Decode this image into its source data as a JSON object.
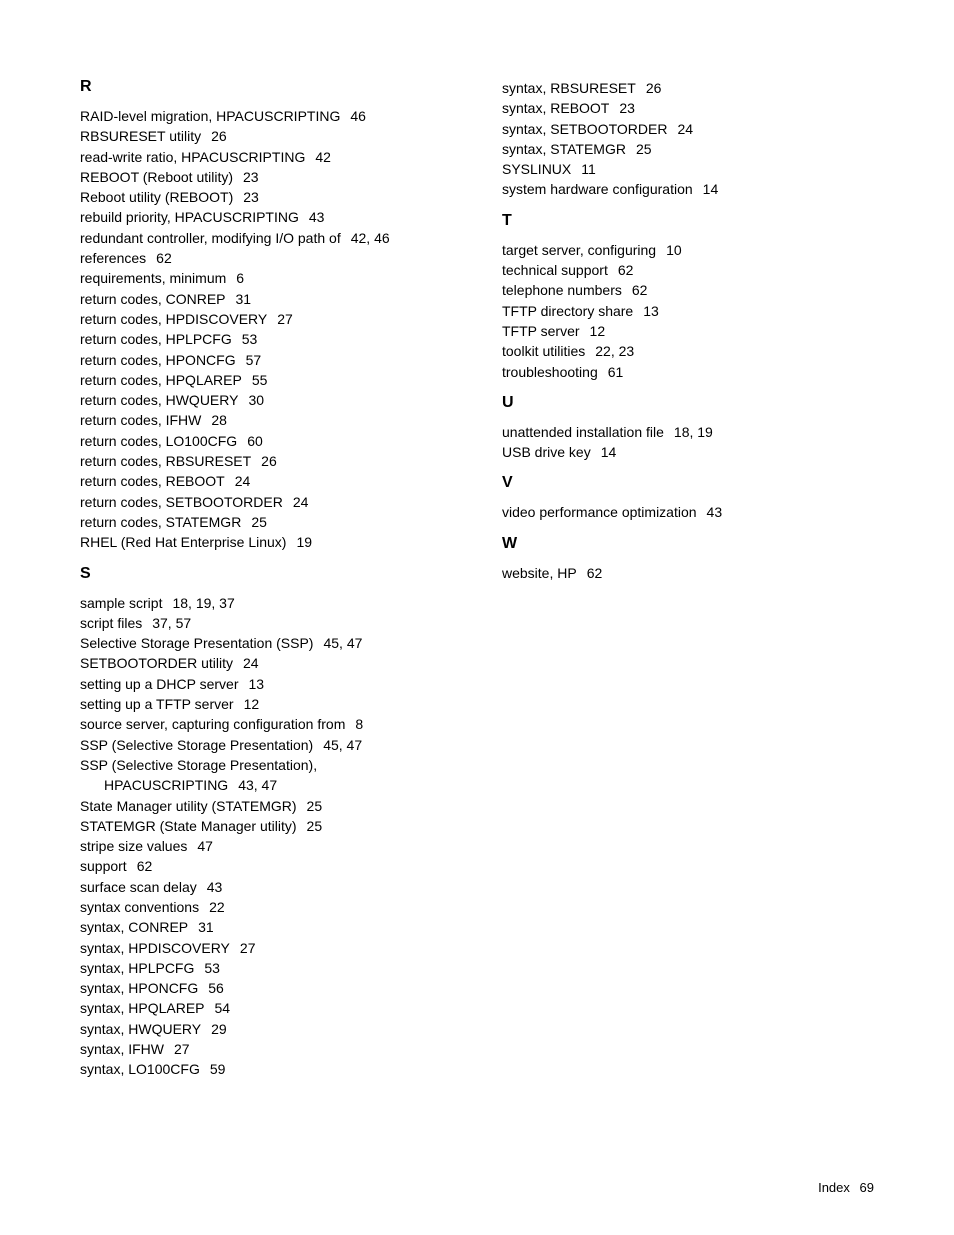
{
  "left_column": {
    "sections": [
      {
        "heading": "R",
        "entries": [
          {
            "text": "RAID-level migration, HPACUSCRIPTING",
            "pages": "46"
          },
          {
            "text": "RBSURESET utility",
            "pages": "26"
          },
          {
            "text": "read-write ratio, HPACUSCRIPTING",
            "pages": "42"
          },
          {
            "text": "REBOOT (Reboot utility)",
            "pages": "23"
          },
          {
            "text": "Reboot utility (REBOOT)",
            "pages": "23"
          },
          {
            "text": "rebuild priority, HPACUSCRIPTING",
            "pages": "43"
          },
          {
            "text": "redundant controller, modifying I/O path of",
            "pages": "42, 46"
          },
          {
            "text": "references",
            "pages": "62"
          },
          {
            "text": "requirements, minimum",
            "pages": "6"
          },
          {
            "text": "return codes, CONREP",
            "pages": "31"
          },
          {
            "text": "return codes, HPDISCOVERY",
            "pages": "27"
          },
          {
            "text": "return codes, HPLPCFG",
            "pages": "53"
          },
          {
            "text": "return codes, HPONCFG",
            "pages": "57"
          },
          {
            "text": "return codes, HPQLAREP",
            "pages": "55"
          },
          {
            "text": "return codes, HWQUERY",
            "pages": "30"
          },
          {
            "text": "return codes, IFHW",
            "pages": "28"
          },
          {
            "text": "return codes, LO100CFG",
            "pages": "60"
          },
          {
            "text": "return codes, RBSURESET",
            "pages": "26"
          },
          {
            "text": "return codes, REBOOT",
            "pages": "24"
          },
          {
            "text": "return codes, SETBOOTORDER",
            "pages": "24"
          },
          {
            "text": "return codes, STATEMGR",
            "pages": "25"
          },
          {
            "text": "RHEL (Red Hat Enterprise Linux)",
            "pages": "19"
          }
        ]
      },
      {
        "heading": "S",
        "entries": [
          {
            "text": "sample script",
            "pages": "18, 19, 37"
          },
          {
            "text": "script files",
            "pages": "37, 57"
          },
          {
            "text": "Selective Storage Presentation (SSP)",
            "pages": "45, 47"
          },
          {
            "text": "SETBOOTORDER utility",
            "pages": "24"
          },
          {
            "text": "setting up a DHCP server",
            "pages": "13"
          },
          {
            "text": "setting up a TFTP server",
            "pages": "12"
          },
          {
            "text": "source server, capturing configuration from",
            "pages": "8"
          },
          {
            "text": "SSP (Selective Storage Presentation)",
            "pages": "45, 47"
          },
          {
            "text": "SSP (Selective Storage Presentation),",
            "pages": ""
          },
          {
            "text": "HPACUSCRIPTING",
            "pages": "43, 47",
            "indented": true
          },
          {
            "text": "State Manager utility (STATEMGR)",
            "pages": "25"
          },
          {
            "text": "STATEMGR (State Manager utility)",
            "pages": "25"
          },
          {
            "text": "stripe size values",
            "pages": "47"
          },
          {
            "text": "support",
            "pages": "62"
          },
          {
            "text": "surface scan delay",
            "pages": "43"
          },
          {
            "text": "syntax conventions",
            "pages": "22"
          },
          {
            "text": "syntax, CONREP",
            "pages": "31"
          },
          {
            "text": "syntax, HPDISCOVERY",
            "pages": "27"
          },
          {
            "text": "syntax, HPLPCFG",
            "pages": "53"
          },
          {
            "text": "syntax, HPONCFG",
            "pages": "56"
          },
          {
            "text": "syntax, HPQLAREP",
            "pages": "54"
          },
          {
            "text": "syntax, HWQUERY",
            "pages": "29"
          },
          {
            "text": "syntax, IFHW",
            "pages": "27"
          },
          {
            "text": "syntax, LO100CFG",
            "pages": "59"
          }
        ]
      }
    ]
  },
  "right_column": {
    "top_entries": [
      {
        "text": "syntax, RBSURESET",
        "pages": "26"
      },
      {
        "text": "syntax, REBOOT",
        "pages": "23"
      },
      {
        "text": "syntax, SETBOOTORDER",
        "pages": "24"
      },
      {
        "text": "syntax, STATEMGR",
        "pages": "25"
      },
      {
        "text": "SYSLINUX",
        "pages": "11"
      },
      {
        "text": "system hardware configuration",
        "pages": "14"
      }
    ],
    "sections": [
      {
        "heading": "T",
        "entries": [
          {
            "text": "target server, configuring",
            "pages": "10"
          },
          {
            "text": "technical support",
            "pages": "62"
          },
          {
            "text": "telephone numbers",
            "pages": "62"
          },
          {
            "text": "TFTP directory share",
            "pages": "13"
          },
          {
            "text": "TFTP server",
            "pages": "12"
          },
          {
            "text": "toolkit utilities",
            "pages": "22, 23"
          },
          {
            "text": "troubleshooting",
            "pages": "61"
          }
        ]
      },
      {
        "heading": "U",
        "entries": [
          {
            "text": "unattended installation file",
            "pages": "18, 19"
          },
          {
            "text": "USB drive key",
            "pages": "14"
          }
        ]
      },
      {
        "heading": "V",
        "entries": [
          {
            "text": "video performance optimization",
            "pages": "43"
          }
        ]
      },
      {
        "heading": "W",
        "entries": [
          {
            "text": "website, HP",
            "pages": "62"
          }
        ]
      }
    ]
  },
  "footer": {
    "label": "Index",
    "page": "69"
  }
}
